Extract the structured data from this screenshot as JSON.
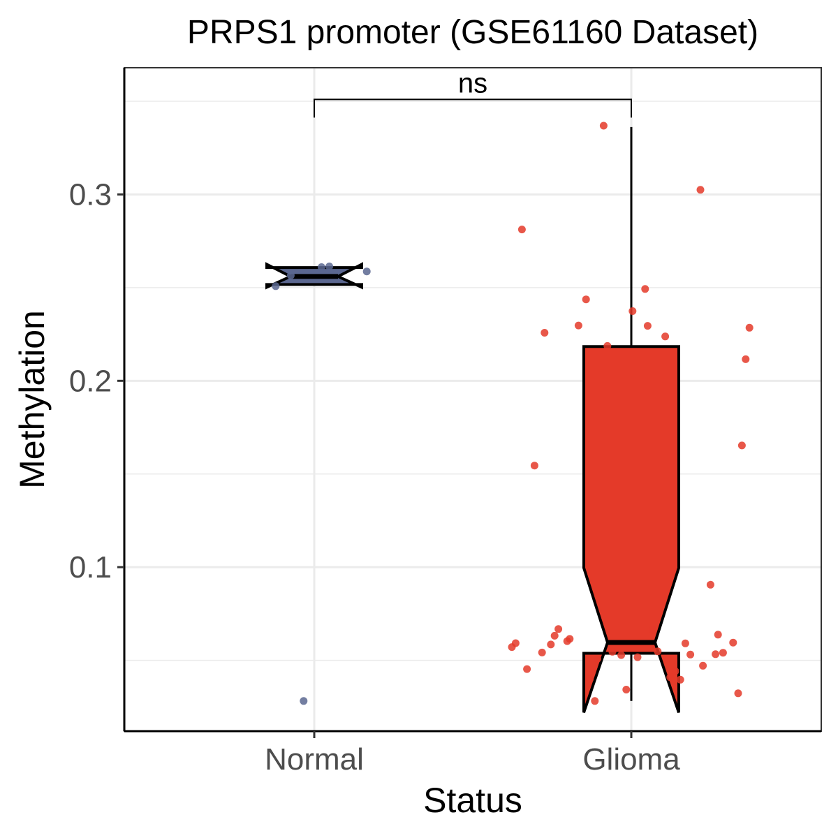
{
  "chart_data": {
    "type": "boxplot",
    "title": "PRPS1 promoter (GSE61160 Dataset)",
    "xlabel": "Status",
    "ylabel": "Methylation",
    "categories": [
      "Normal",
      "Glioma"
    ],
    "ylim": [
      0.012,
      0.368
    ],
    "yticks": [
      0.1,
      0.2,
      0.3
    ],
    "ytick_labels": [
      "0.1",
      "0.2",
      "0.3"
    ],
    "grid": true,
    "significance": {
      "label": "ns",
      "groups": [
        "Normal",
        "Glioma"
      ],
      "y": 0.351
    },
    "colors": {
      "Normal": "#5b6790",
      "Glioma": "#e43a29"
    },
    "groups": [
      {
        "name": "Normal",
        "box": {
          "lower_whisker": 0.2517,
          "q1": 0.2517,
          "median": 0.256,
          "q3": 0.2608,
          "upper_whisker": 0.2608,
          "notch_low": 0.2502,
          "notch_high": 0.2625
        },
        "points": [
          0.261,
          0.2565,
          0.2587,
          0.2508,
          0.2614,
          0.0282
        ]
      },
      {
        "name": "Glioma",
        "box": {
          "lower_whisker": 0.0282,
          "q1": 0.0538,
          "median": 0.0596,
          "q3": 0.2184,
          "upper_whisker": 0.3362,
          "notch_low": 0.022,
          "notch_high": 0.0996
        },
        "points": [
          0.3369,
          0.3025,
          0.2812,
          0.2493,
          0.2437,
          0.2374,
          0.2295,
          0.2297,
          0.2285,
          0.2258,
          0.2238,
          0.2187,
          0.2116,
          0.1653,
          0.1545,
          0.0906,
          0.0668,
          0.0663,
          0.0615,
          0.0632,
          0.0638,
          0.0603,
          0.0595,
          0.0592,
          0.0591,
          0.0585,
          0.0571,
          0.0548,
          0.0546,
          0.0541,
          0.0542,
          0.0533,
          0.0531,
          0.0528,
          0.0517,
          0.0508,
          0.0471,
          0.0453,
          0.0442,
          0.0409,
          0.0399,
          0.0396,
          0.0343,
          0.0323,
          0.0282
        ]
      }
    ]
  }
}
